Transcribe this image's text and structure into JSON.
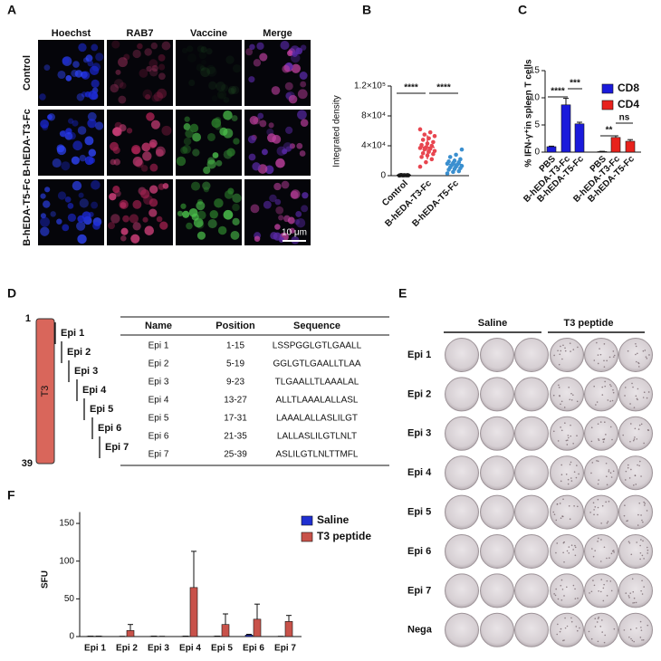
{
  "panel_labels": [
    "A",
    "B",
    "C",
    "D",
    "E",
    "F"
  ],
  "panel_a": {
    "columns": [
      "Hoechst",
      "RAB7",
      "Vaccine",
      "Merge"
    ],
    "rows": [
      "Control",
      "B-hEDA-T3-Fc",
      "B-hEDA-T5-Fc"
    ],
    "scale_bar": "10 μm"
  },
  "panel_d": {
    "bar_label": "T3",
    "start": 1,
    "end": 39,
    "epitopes": [
      "Epi 1",
      "Epi 2",
      "Epi 3",
      "Epi 4",
      "Epi 5",
      "Epi 6",
      "Epi 7"
    ],
    "table": {
      "header": [
        "Name",
        "Position",
        "Sequence"
      ],
      "rows": [
        [
          "Epi 1",
          "1-15",
          "LSSPGGLGTLGAALL"
        ],
        [
          "Epi 2",
          "5-19",
          "GGLGTLGAALLTLAA"
        ],
        [
          "Epi 3",
          "9-23",
          "TLGAALLTLAAALAL"
        ],
        [
          "Epi 4",
          "13-27",
          "ALLTLAAALALLASL"
        ],
        [
          "Epi 5",
          "17-31",
          "LAAALALLASLILGT"
        ],
        [
          "Epi 6",
          "21-35",
          "LALLASLILGTLNLT"
        ],
        [
          "Epi 7",
          "25-39",
          "ASLILGTLNLTTMFL"
        ]
      ]
    }
  },
  "panel_e": {
    "groups": [
      "Saline",
      "T3 peptide"
    ],
    "rows": [
      "Epi 1",
      "Epi 2",
      "Epi 3",
      "Epi 4",
      "Epi 5",
      "Epi 6",
      "Epi 7",
      "Nega"
    ]
  },
  "chart_data": [
    {
      "type": "dot",
      "ylabel": "Integrated density",
      "categories": [
        "Control",
        "B-hEDA-T3-Fc",
        "B-hEDA-T5-Fc"
      ],
      "colors": [
        "#222222",
        "#e8454f",
        "#3a8fcf"
      ],
      "points": [
        [
          200,
          300,
          400,
          500,
          600,
          700,
          800,
          500,
          400,
          600
        ],
        [
          12000,
          18000,
          22000,
          25000,
          27000,
          29000,
          30000,
          32000,
          33000,
          35000,
          36000,
          37000,
          38000,
          40000,
          41000,
          43000,
          45000,
          48000,
          50000,
          53000,
          55000,
          58000,
          62000
        ],
        [
          3000,
          5000,
          6000,
          8000,
          9000,
          10000,
          11000,
          12000,
          13000,
          14000,
          15000,
          16000,
          17000,
          18000,
          19000,
          20000,
          22000,
          25000,
          28000,
          35000
        ]
      ],
      "means": [
        500,
        38000,
        15000
      ],
      "sd": [
        200,
        16000,
        8000
      ],
      "ylim": [
        0,
        120000
      ],
      "yticks": [
        0,
        {
          "value": 40000,
          "label": "4×10⁴"
        },
        {
          "value": 80000,
          "label": "8×10⁴"
        },
        {
          "value": 120000,
          "label": "1.2×10⁵"
        }
      ],
      "annotations": [
        "****",
        "****"
      ]
    },
    {
      "type": "bar",
      "ylabel": "% IFN-γ⁺in spleen T cells",
      "categories": [
        "PBS",
        "B-hEDA-T3-Fc",
        "B-hEDA-T5-Fc",
        "PBS",
        "B-hEDA-T3-Fc",
        "B-hEDA-T5-Fc"
      ],
      "series": [
        {
          "name": "CD8",
          "color": "#1a1adb",
          "values": [
            1.0,
            8.7,
            5.2,
            null,
            null,
            null
          ],
          "errors": [
            0.1,
            1.2,
            0.3,
            null,
            null,
            null
          ]
        },
        {
          "name": "CD4",
          "color": "#e8221c",
          "values": [
            null,
            null,
            null,
            0.1,
            2.7,
            2.0
          ],
          "errors": [
            null,
            null,
            null,
            0.05,
            0.3,
            0.3
          ]
        }
      ],
      "ylim": [
        0,
        15
      ],
      "yticks": [
        0,
        5,
        10,
        15
      ],
      "annotations": [
        "****",
        "***",
        "**",
        "ns"
      ]
    },
    {
      "type": "bar",
      "ylabel": "SFU",
      "categories": [
        "Epi 1",
        "Epi 2",
        "Epi 3",
        "Epi 4",
        "Epi 5",
        "Epi 6",
        "Epi 7"
      ],
      "series": [
        {
          "name": "Saline",
          "color": "#1f2fd1",
          "values": [
            0.5,
            0.3,
            0.5,
            0.5,
            0.5,
            2,
            0.3
          ],
          "errors": [
            0,
            0,
            0,
            0,
            0,
            1,
            0
          ]
        },
        {
          "name": "T3 peptide",
          "color": "#c8524a",
          "values": [
            0.5,
            8,
            0.3,
            65,
            16,
            23,
            20
          ],
          "errors": [
            0,
            8,
            0,
            48,
            14,
            20,
            8
          ]
        }
      ],
      "ylim": [
        0,
        165
      ],
      "yticks": [
        0,
        50,
        100,
        150
      ]
    }
  ]
}
